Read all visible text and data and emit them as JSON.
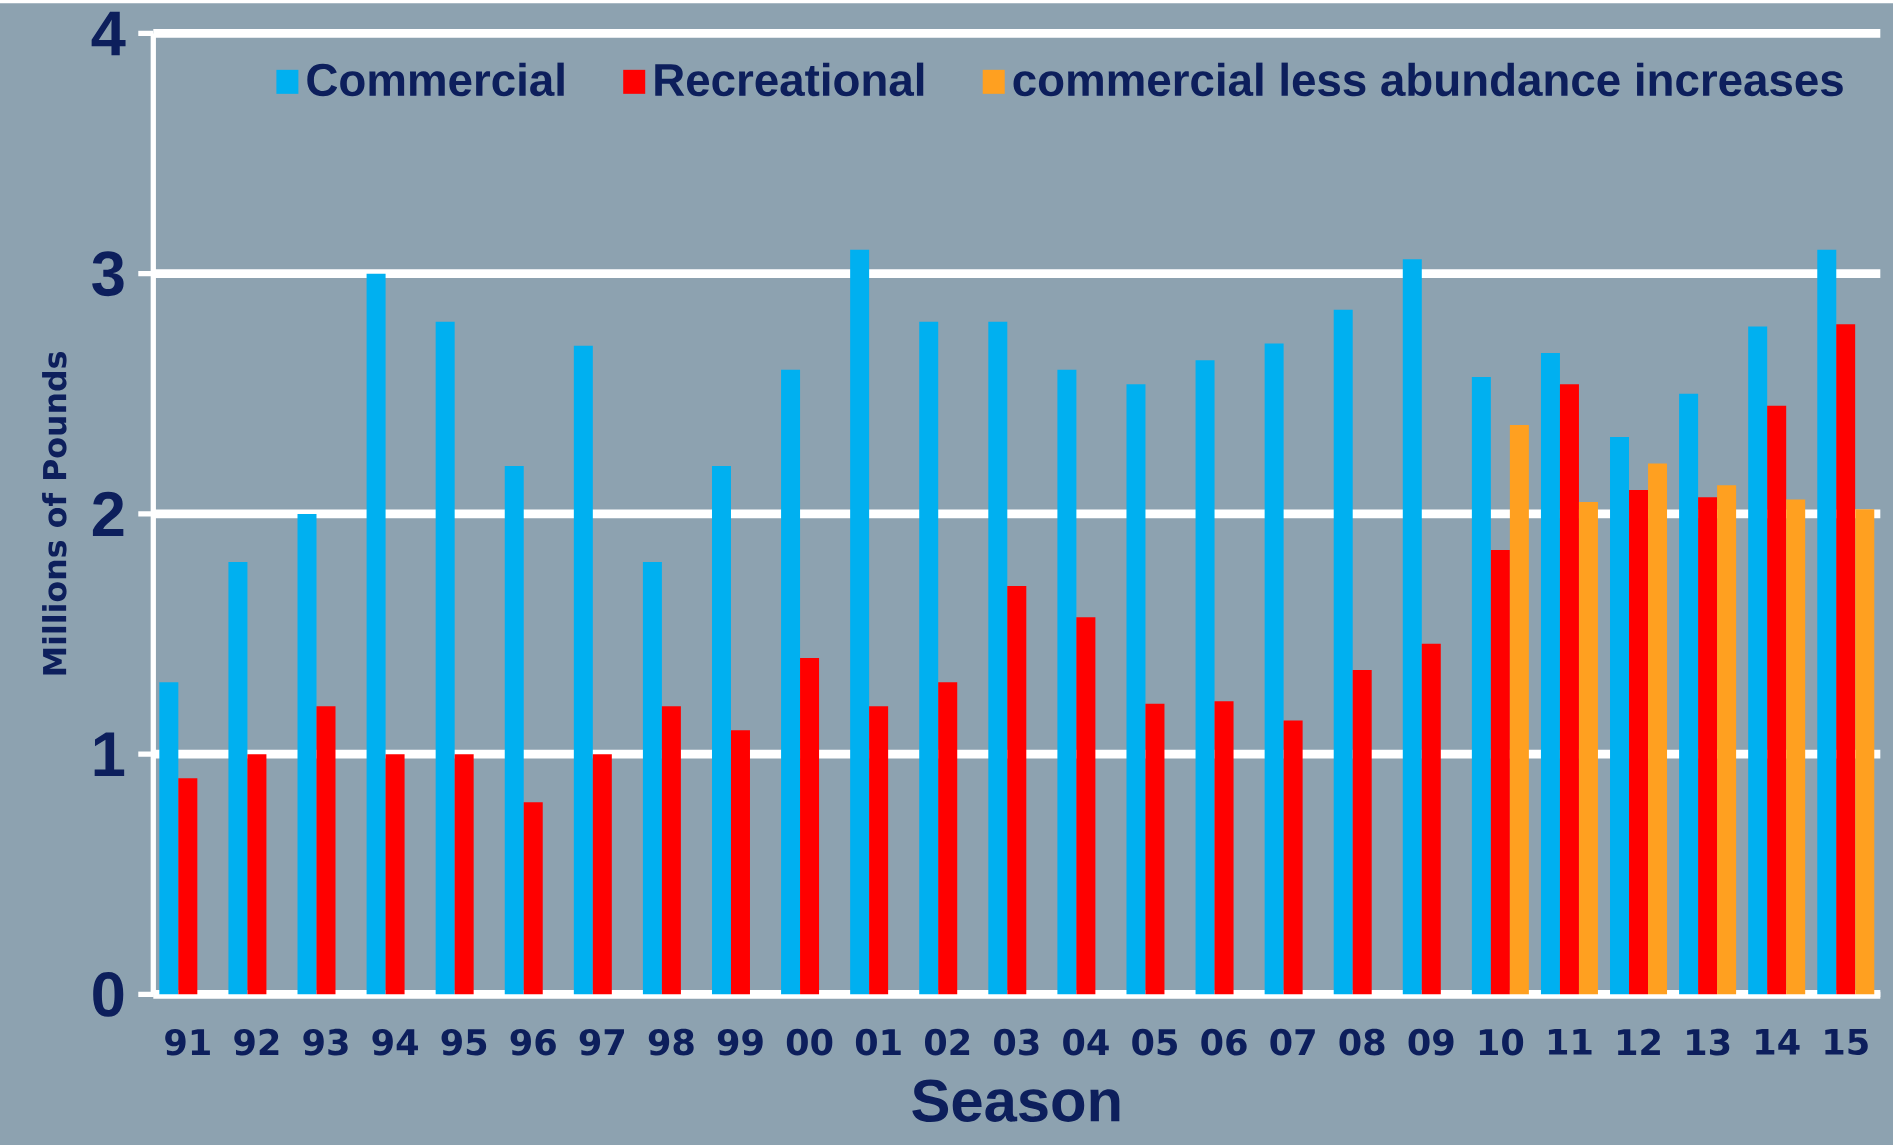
{
  "chart_data": {
    "type": "bar",
    "xlabel": "Season",
    "ylabel": "Millions of Pounds",
    "categories": [
      "91",
      "92",
      "93",
      "94",
      "95",
      "96",
      "97",
      "98",
      "99",
      "00",
      "01",
      "02",
      "03",
      "04",
      "05",
      "06",
      "07",
      "08",
      "09",
      "10",
      "11",
      "12",
      "13",
      "14",
      "15"
    ],
    "series": [
      {
        "name": "Commercial",
        "color": "#00b0f0",
        "values": [
          1.3,
          1.8,
          2.0,
          3.0,
          2.8,
          2.2,
          2.7,
          1.8,
          2.2,
          2.6,
          3.1,
          2.8,
          2.8,
          2.6,
          2.54,
          2.64,
          2.71,
          2.85,
          3.06,
          2.57,
          2.67,
          2.32,
          2.5,
          2.78,
          3.1
        ]
      },
      {
        "name": "Recreational",
        "color": "#ff0000",
        "values": [
          0.9,
          1.0,
          1.2,
          1.0,
          1.0,
          0.8,
          1.0,
          1.2,
          1.1,
          1.4,
          1.2,
          1.3,
          1.7,
          1.57,
          1.21,
          1.22,
          1.14,
          1.35,
          1.46,
          1.85,
          2.54,
          2.1,
          2.07,
          2.45,
          2.79
        ]
      },
      {
        "name": "commercial less abundance increases",
        "color": "#ffa020",
        "values": [
          null,
          null,
          null,
          null,
          null,
          null,
          null,
          null,
          null,
          null,
          null,
          null,
          null,
          null,
          null,
          null,
          null,
          null,
          null,
          2.37,
          2.05,
          2.21,
          2.12,
          2.06,
          2.02
        ]
      }
    ],
    "ylim": [
      0,
      4
    ],
    "yticks": [
      0,
      1,
      2,
      3,
      4
    ],
    "grid": "y",
    "legend": "top right"
  }
}
